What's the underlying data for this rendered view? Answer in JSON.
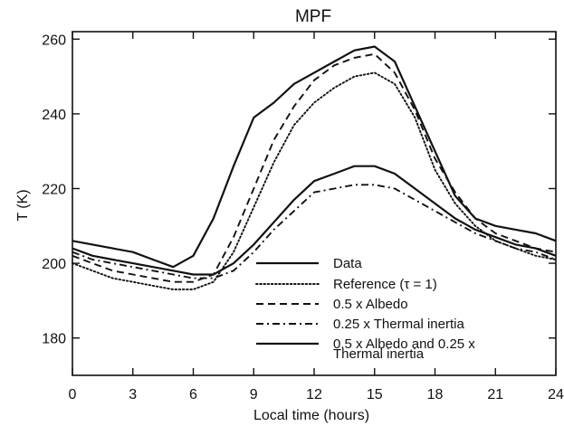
{
  "chart_data": {
    "type": "line",
    "title": "MPF",
    "xlabel": "Local time (hours)",
    "ylabel": "T (K)",
    "xlim": [
      0,
      24
    ],
    "ylim": [
      170,
      262
    ],
    "xticks": [
      0,
      3,
      6,
      9,
      12,
      15,
      18,
      21,
      24
    ],
    "yticks": [
      180,
      200,
      220,
      240,
      260
    ],
    "grid": false,
    "legend_position": "lower-center",
    "series": [
      {
        "name": "Data",
        "style": "solid",
        "color": "#111111",
        "x": [
          0,
          1,
          2,
          3,
          4,
          5,
          6,
          7,
          8,
          9,
          10,
          11,
          12,
          13,
          14,
          15,
          16,
          17,
          18,
          19,
          20,
          21,
          22,
          23,
          24
        ],
        "y": [
          206,
          205,
          204,
          203,
          201,
          199,
          202,
          212,
          226,
          239,
          243,
          248,
          251,
          254,
          257,
          258,
          254,
          242,
          230,
          218,
          212,
          210,
          209,
          208,
          206
        ]
      },
      {
        "name": "Reference (τ = 1)",
        "style": "dotted",
        "color": "#111111",
        "x": [
          0,
          1,
          2,
          3,
          4,
          5,
          6,
          7,
          8,
          9,
          10,
          11,
          12,
          13,
          14,
          15,
          16,
          17,
          18,
          19,
          20,
          21,
          22,
          23,
          24
        ],
        "y": [
          200,
          198,
          196,
          195,
          194,
          193,
          193,
          195,
          203,
          215,
          227,
          237,
          243,
          247,
          250,
          251,
          248,
          239,
          225,
          216,
          210,
          206,
          204,
          202,
          201
        ]
      },
      {
        "name": "0.5 x Albedo",
        "style": "dashed",
        "color": "#111111",
        "x": [
          0,
          1,
          2,
          3,
          4,
          5,
          6,
          7,
          8,
          9,
          10,
          11,
          12,
          13,
          14,
          15,
          16,
          17,
          18,
          19,
          20,
          21,
          22,
          23,
          24
        ],
        "y": [
          202,
          200,
          198,
          197,
          196,
          195,
          195,
          197,
          207,
          220,
          233,
          242,
          249,
          253,
          255,
          256,
          251,
          241,
          228,
          219,
          212,
          208,
          206,
          204,
          203
        ]
      },
      {
        "name": "0.25 x Thermal inertia",
        "style": "dashdot",
        "color": "#111111",
        "x": [
          0,
          1,
          2,
          3,
          4,
          5,
          6,
          7,
          8,
          9,
          10,
          11,
          12,
          13,
          14,
          15,
          16,
          17,
          18,
          19,
          20,
          21,
          22,
          23,
          24
        ],
        "y": [
          203,
          201,
          200,
          199,
          198,
          197,
          196,
          196,
          198,
          203,
          209,
          214,
          219,
          220,
          221,
          221,
          220,
          217,
          214,
          211,
          208,
          206,
          204,
          203,
          201
        ]
      },
      {
        "name": "0.5 x Albedo and 0.25 x Thermal inertia",
        "style": "solid",
        "color": "#111111",
        "x": [
          0,
          1,
          2,
          3,
          4,
          5,
          6,
          7,
          8,
          9,
          10,
          11,
          12,
          13,
          14,
          15,
          16,
          17,
          18,
          19,
          20,
          21,
          22,
          23,
          24
        ],
        "y": [
          204,
          202,
          201,
          200,
          199,
          198,
          197,
          197,
          200,
          205,
          211,
          217,
          222,
          224,
          226,
          226,
          224,
          220,
          216,
          212,
          209,
          207,
          205,
          204,
          202
        ]
      }
    ],
    "legend": [
      {
        "line1": "Data"
      },
      {
        "line1": "Reference (τ = 1)"
      },
      {
        "line1": "0.5 x Albedo"
      },
      {
        "line1": "0.25 x Thermal inertia"
      },
      {
        "line1": "0.5 x Albedo and 0.25 x",
        "line2": "Thermal inertia"
      }
    ]
  }
}
